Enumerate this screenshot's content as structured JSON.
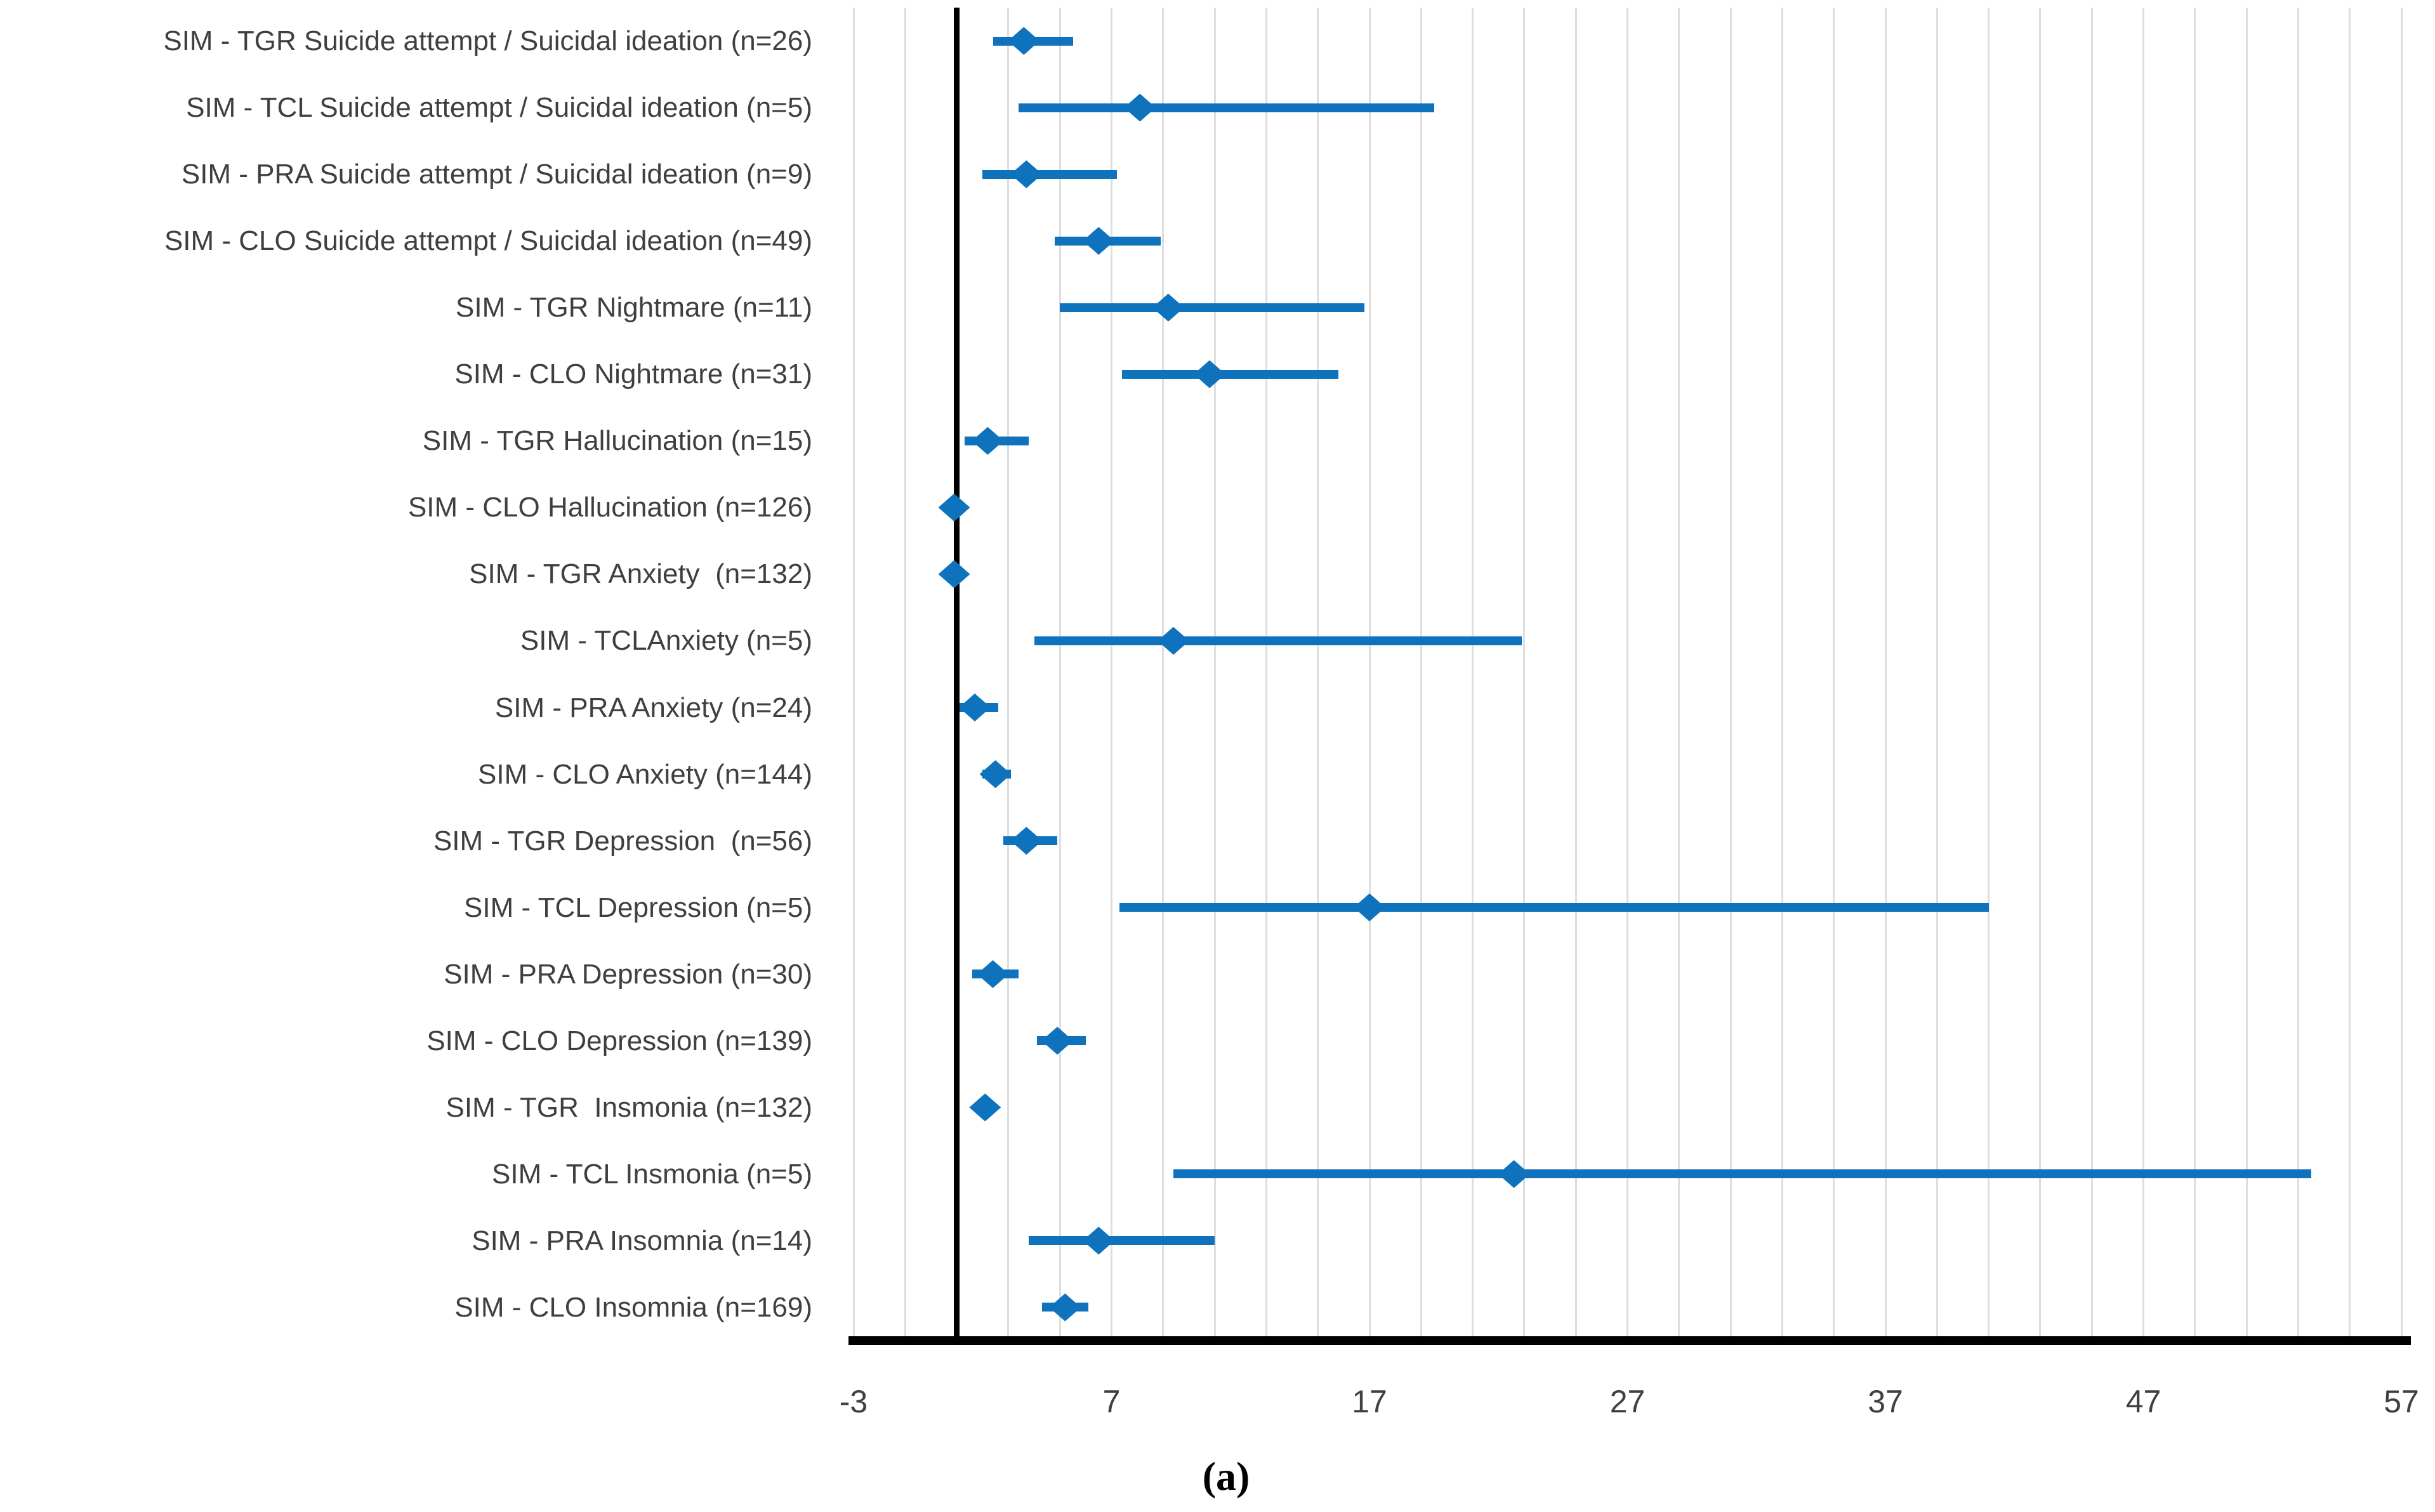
{
  "figure_label": "(a)",
  "colors": {
    "marker_blue": "#0e72bc",
    "gridline": "#dedede",
    "reference_line": "#000000",
    "axis_line": "#000000",
    "label_text": "#3f3f3f",
    "tick_text": "#404040",
    "background": "#ffffff"
  },
  "x_axis": {
    "tick_labels": [
      "-3",
      "7",
      "17",
      "27",
      "37",
      "47",
      "57"
    ],
    "tick_values": [
      -3,
      7,
      17,
      27,
      37,
      47,
      57
    ],
    "min": -3,
    "max": 57,
    "minor_gridline_step": 2,
    "reference_line_value": 1
  },
  "chart_data": {
    "type": "scatter",
    "style_note": "horizontal forest plot: diamond marker at point estimate with horizontal confidence-interval line per category; vertical black reference line at x=1; light vertical gridlines every 2 units",
    "title": "",
    "xlabel": "",
    "ylabel": "",
    "xlim": [
      -3,
      57
    ],
    "grid": true,
    "legend": "none",
    "categories": [
      "SIM - TGR Suicide attempt / Suicidal ideation (n=26)",
      "SIM - TCL Suicide attempt / Suicidal ideation (n=5)",
      "SIM - PRA Suicide attempt / Suicidal ideation (n=9)",
      "SIM - CLO Suicide attempt / Suicidal ideation (n=49)",
      "SIM - TGR Nightmare (n=11)",
      "SIM - CLO Nightmare (n=31)",
      "SIM - TGR Hallucination (n=15)",
      "SIM - CLO Hallucination (n=126)",
      "SIM - TGR Anxiety  (n=132)",
      "SIM - TCLAnxiety (n=5)",
      "SIM - PRA Anxiety (n=24)",
      "SIM - CLO Anxiety (n=144)",
      "SIM - TGR Depression  (n=56)",
      "SIM - TCL Depression (n=5)",
      "SIM - PRA Depression (n=30)",
      "SIM - CLO Depression (n=139)",
      "SIM - TGR  Insmonia (n=132)",
      "SIM - TCL Insmonia (n=5)",
      "SIM - PRA Insomnia (n=14)",
      "SIM - CLO Insomnia (n=169)"
    ],
    "series": [
      {
        "name": "point_estimate",
        "values": [
          3.6,
          8.1,
          3.7,
          6.5,
          9.2,
          10.8,
          2.2,
          0.9,
          0.9,
          9.4,
          1.7,
          2.5,
          3.7,
          17.0,
          2.4,
          4.9,
          2.1,
          22.6,
          6.5,
          5.2
        ]
      },
      {
        "name": "ci_low",
        "values": [
          2.4,
          3.4,
          2.0,
          4.8,
          5.0,
          7.4,
          1.3,
          0.6,
          0.6,
          4.0,
          1.1,
          2.0,
          2.8,
          7.3,
          1.6,
          4.1,
          1.7,
          9.4,
          3.8,
          4.3
        ]
      },
      {
        "name": "ci_high",
        "values": [
          5.5,
          19.5,
          7.2,
          8.9,
          16.8,
          15.8,
          3.8,
          1.3,
          1.3,
          22.9,
          2.6,
          3.1,
          4.9,
          41.0,
          3.4,
          6.0,
          2.5,
          53.5,
          11.0,
          6.1
        ]
      }
    ]
  }
}
